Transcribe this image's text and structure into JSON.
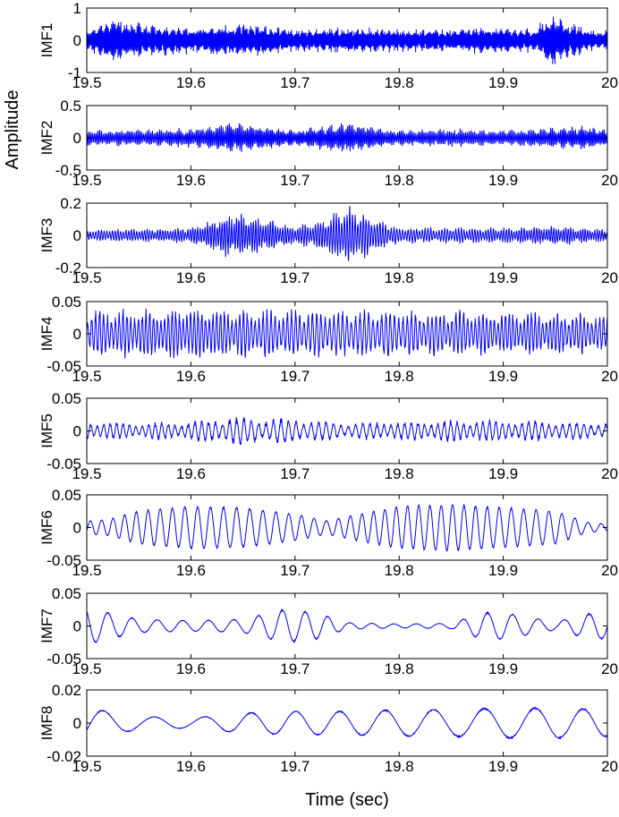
{
  "chart_data": {
    "type": "line",
    "ylabel": "Amplitude",
    "xlabel": "Time (sec)",
    "xlim": [
      19.5,
      20
    ],
    "x_ticks": [
      "19.5",
      "19.6",
      "19.7",
      "19.8",
      "19.9",
      "20"
    ],
    "line_color": "#0000ff",
    "grid": false,
    "subplots": [
      {
        "name": "IMF1",
        "ylim": [
          -1,
          1
        ],
        "y_ticks": [
          "1",
          "0",
          "-1"
        ],
        "y_tick_values": [
          1,
          0,
          -1
        ],
        "dominant_frequency_hz": 950,
        "envelope_time": [
          19.5,
          19.52,
          19.55,
          19.6,
          19.65,
          19.7,
          19.75,
          19.8,
          19.85,
          19.9,
          19.93,
          19.945,
          19.96,
          19.98,
          20
        ],
        "envelope_amplitude": [
          0.25,
          0.55,
          0.45,
          0.35,
          0.45,
          0.3,
          0.35,
          0.3,
          0.3,
          0.35,
          0.3,
          0.7,
          0.5,
          0.3,
          0.25
        ]
      },
      {
        "name": "IMF2",
        "ylim": [
          -0.5,
          0.5
        ],
        "y_ticks": [
          "0.5",
          "0",
          "-0.5"
        ],
        "y_tick_values": [
          0.5,
          0,
          -0.5
        ],
        "dominant_frequency_hz": 620,
        "envelope_time": [
          19.5,
          19.6,
          19.64,
          19.7,
          19.75,
          19.8,
          19.85,
          19.9,
          19.98,
          20
        ],
        "envelope_amplitude": [
          0.1,
          0.12,
          0.2,
          0.1,
          0.2,
          0.1,
          0.12,
          0.1,
          0.15,
          0.1
        ]
      },
      {
        "name": "IMF3",
        "ylim": [
          -0.2,
          0.2
        ],
        "y_ticks": [
          "0.2",
          "0",
          "-0.2"
        ],
        "y_tick_values": [
          0.2,
          0,
          -0.2
        ],
        "dominant_frequency_hz": 400,
        "envelope_time": [
          19.5,
          19.6,
          19.64,
          19.7,
          19.72,
          19.75,
          19.8,
          19.9,
          19.95,
          20
        ],
        "envelope_amplitude": [
          0.03,
          0.04,
          0.12,
          0.05,
          0.07,
          0.15,
          0.04,
          0.04,
          0.05,
          0.03
        ]
      },
      {
        "name": "IMF4",
        "ylim": [
          -0.05,
          0.05
        ],
        "y_ticks": [
          "0.05",
          "0",
          "-0.05"
        ],
        "y_tick_values": [
          0.05,
          0,
          -0.05
        ],
        "dominant_frequency_hz": 260,
        "envelope_time": [
          19.5,
          19.6,
          19.7,
          19.8,
          19.9,
          20
        ],
        "envelope_amplitude": [
          0.03,
          0.032,
          0.03,
          0.03,
          0.028,
          0.025
        ]
      },
      {
        "name": "IMF5",
        "ylim": [
          -0.05,
          0.05
        ],
        "y_ticks": [
          "0.05",
          "0",
          "-0.05"
        ],
        "y_tick_values": [
          0.05,
          0,
          -0.05
        ],
        "dominant_frequency_hz": 150,
        "envelope_time": [
          19.5,
          19.55,
          19.6,
          19.64,
          19.7,
          19.75,
          19.8,
          19.85,
          19.9,
          19.95,
          20
        ],
        "envelope_amplitude": [
          0.012,
          0.01,
          0.012,
          0.018,
          0.016,
          0.01,
          0.012,
          0.014,
          0.014,
          0.012,
          0.01
        ]
      },
      {
        "name": "IMF6",
        "ylim": [
          -0.05,
          0.05
        ],
        "y_ticks": [
          "0.05",
          "0",
          "-0.05"
        ],
        "y_tick_values": [
          0.05,
          0,
          -0.05
        ],
        "dominant_frequency_hz": 86,
        "envelope_time": [
          19.5,
          19.52,
          19.55,
          19.6,
          19.65,
          19.7,
          19.73,
          19.76,
          19.8,
          19.85,
          19.9,
          19.95,
          19.98,
          20
        ],
        "envelope_amplitude": [
          0.01,
          0.012,
          0.025,
          0.032,
          0.03,
          0.02,
          0.01,
          0.02,
          0.032,
          0.035,
          0.03,
          0.025,
          0.008,
          0.005
        ]
      },
      {
        "name": "IMF7",
        "ylim": [
          -0.05,
          0.05
        ],
        "y_ticks": [
          "0.05",
          "0",
          "-0.05"
        ],
        "y_tick_values": [
          0.05,
          0,
          -0.05
        ],
        "dominant_frequency_hz": 44,
        "envelope_time": [
          19.5,
          19.52,
          19.55,
          19.6,
          19.65,
          19.69,
          19.72,
          19.75,
          19.8,
          19.85,
          19.88,
          19.9,
          19.95,
          19.98,
          20
        ],
        "envelope_amplitude": [
          0.028,
          0.02,
          0.01,
          0.008,
          0.01,
          0.025,
          0.02,
          0.005,
          0.003,
          0.004,
          0.02,
          0.02,
          0.006,
          0.018,
          0.02
        ]
      },
      {
        "name": "IMF8",
        "ylim": [
          -0.02,
          0.02
        ],
        "y_ticks": [
          "0.02",
          "0",
          "-0.02"
        ],
        "y_tick_values": [
          0.02,
          0,
          -0.02
        ],
        "dominant_frequency_hz": 22,
        "envelope_time": [
          19.5,
          19.55,
          19.6,
          19.65,
          19.7,
          19.75,
          19.8,
          19.85,
          19.9,
          19.95,
          20
        ],
        "envelope_amplitude": [
          0.009,
          0.004,
          0.003,
          0.006,
          0.007,
          0.007,
          0.008,
          0.008,
          0.009,
          0.009,
          0.008
        ]
      }
    ]
  }
}
